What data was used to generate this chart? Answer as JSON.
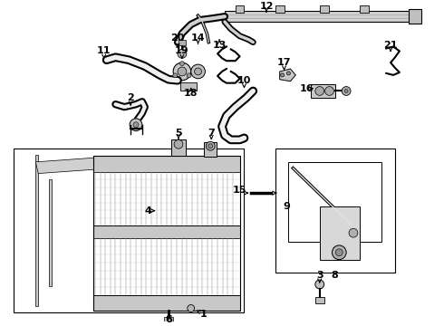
{
  "bg_color": "#ffffff",
  "line_color": "#000000",
  "gray1": "#888888",
  "gray2": "#aaaaaa",
  "gray3": "#cccccc",
  "gray4": "#e0e0e0",
  "font_size": 8,
  "bold_font": true
}
